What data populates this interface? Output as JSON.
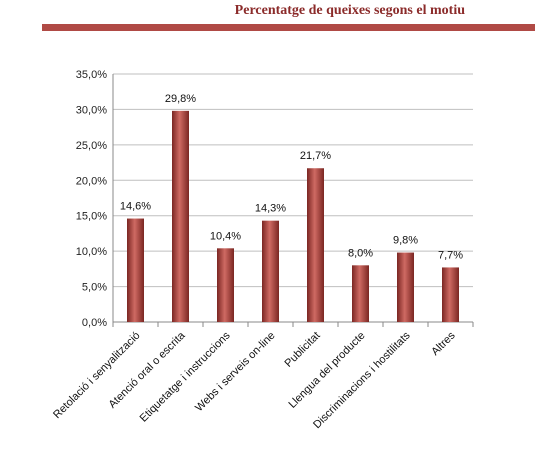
{
  "header": {
    "title": "Percentatge de queixes segons el motiu"
  },
  "colors": {
    "accent": "#b04a45",
    "bar": "#a83a34",
    "bar_light": "#cf6a63",
    "bar_dark": "#7a2622",
    "header_text": "#8b2b2a",
    "grid": "#bfbfbf"
  },
  "chart_data": {
    "type": "bar",
    "categories": [
      "Retolació i senyalització",
      "Atenció oral o escrita",
      "Etiquetatge i instruccions",
      "Webs i serveis on-line",
      "Publicitat",
      "Llengua del producte",
      "Discriminacions i hostilitats",
      "Altres"
    ],
    "values": [
      14.6,
      29.8,
      10.4,
      14.3,
      21.7,
      8.0,
      9.8,
      7.7
    ],
    "data_labels": [
      "14,6%",
      "29,8%",
      "10,4%",
      "14,3%",
      "21,7%",
      "8,0%",
      "9,8%",
      "7,7%"
    ],
    "y_ticks": [
      0,
      5,
      10,
      15,
      20,
      25,
      30,
      35
    ],
    "y_tick_labels": [
      "0,0%",
      "5,0%",
      "10,0%",
      "15,0%",
      "20,0%",
      "25,0%",
      "30,0%",
      "35,0%"
    ],
    "ylim": [
      0,
      35
    ],
    "grid": true,
    "title": "",
    "xlabel": "",
    "ylabel": ""
  }
}
